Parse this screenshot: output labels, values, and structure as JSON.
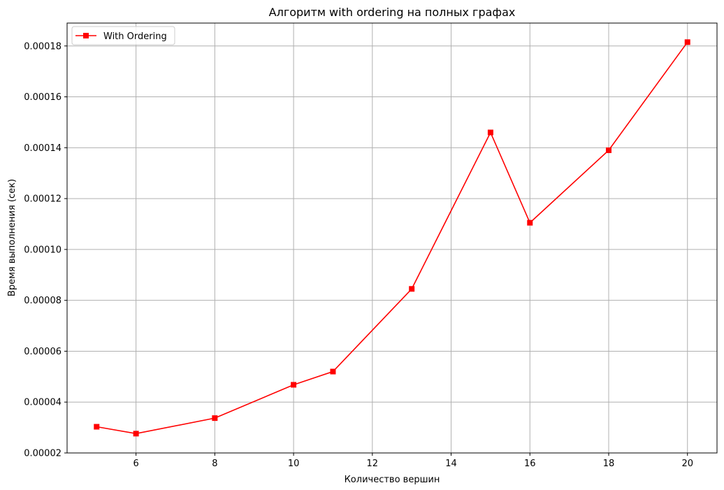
{
  "chart_data": {
    "type": "line",
    "title": "Алгоритм with ordering на полных графах",
    "xlabel": "Количество вершин",
    "ylabel": "Время выполнения (сек)",
    "xlim": [
      4.25,
      20.75
    ],
    "ylim": [
      2e-05,
      0.000189
    ],
    "xticks": [
      6,
      8,
      10,
      12,
      14,
      16,
      18,
      20
    ],
    "yticks": [
      2e-05,
      4e-05,
      6e-05,
      8e-05,
      0.0001,
      0.00012,
      0.00014,
      0.00016,
      0.00018
    ],
    "xtick_labels": [
      "6",
      "8",
      "10",
      "12",
      "14",
      "16",
      "18",
      "20"
    ],
    "ytick_labels": [
      "0.00002",
      "0.00004",
      "0.00006",
      "0.00008",
      "0.00010",
      "0.00012",
      "0.00014",
      "0.00016",
      "0.00018"
    ],
    "grid": true,
    "legend_position": "top-left",
    "series": [
      {
        "name": "With Ordering",
        "color": "#ff0000",
        "marker": "square",
        "x": [
          5,
          6,
          8,
          10,
          11,
          13,
          15,
          16,
          18,
          20
        ],
        "y": [
          3.03e-05,
          2.76e-05,
          3.37e-05,
          4.68e-05,
          5.2e-05,
          8.45e-05,
          0.000146,
          0.0001105,
          0.000139,
          0.0001815
        ]
      }
    ]
  }
}
